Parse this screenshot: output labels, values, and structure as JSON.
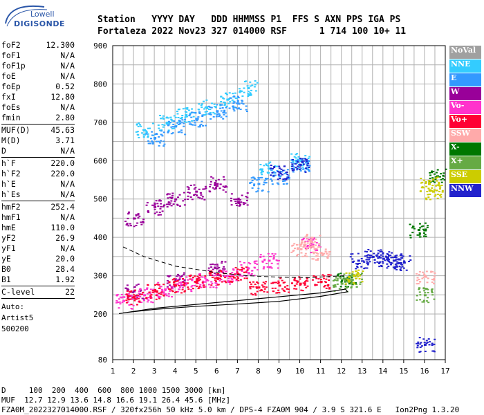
{
  "logo": {
    "line1": "Lowell",
    "line2": "DIGISONDE"
  },
  "header": {
    "line1": "Station   YYYY DAY   DDD HHMMSS P1  FFS S AXN PPS IGA PS",
    "line2": "Fortaleza 2022 Nov23 327 014000 RSF      1 714 100 10+ 11"
  },
  "params": {
    "group1": [
      {
        "k": "foF2",
        "v": "12.300"
      },
      {
        "k": "foF1",
        "v": "N/A"
      },
      {
        "k": "foF1p",
        "v": "N/A"
      },
      {
        "k": "foE",
        "v": "N/A"
      },
      {
        "k": "foEp",
        "v": "0.52"
      },
      {
        "k": "fxI",
        "v": "12.80"
      },
      {
        "k": "foEs",
        "v": "N/A"
      },
      {
        "k": "fmin",
        "v": "2.80"
      }
    ],
    "group2": [
      {
        "k": "MUF(D)",
        "v": "45.63"
      },
      {
        "k": "M(D)",
        "v": "3.71"
      },
      {
        "k": "D",
        "v": "N/A"
      }
    ],
    "group3": [
      {
        "k": "h`F",
        "v": "220.0"
      },
      {
        "k": "h`F2",
        "v": "220.0"
      },
      {
        "k": "h`E",
        "v": "N/A"
      },
      {
        "k": "h`Es",
        "v": "N/A"
      }
    ],
    "group4": [
      {
        "k": "hmF2",
        "v": "252.4"
      },
      {
        "k": "hmF1",
        "v": "N/A"
      },
      {
        "k": "hmE",
        "v": "110.0"
      },
      {
        "k": "yF2",
        "v": "26.9"
      },
      {
        "k": "yF1",
        "v": "N/A"
      },
      {
        "k": "yE",
        "v": "20.0"
      },
      {
        "k": "B0",
        "v": "28.4"
      },
      {
        "k": "B1",
        "v": "1.92"
      }
    ],
    "group5": [
      {
        "k": "C-level",
        "v": "22"
      }
    ],
    "auto": [
      "Auto:",
      "Artist5",
      "500200"
    ]
  },
  "footer": {
    "line1": "D     100  200  400  600  800 1000 1500 3000 [km]",
    "line2": "MUF  12.7 12.9 13.6 14.8 16.6 19.1 26.4 45.6 [MHz]",
    "line3": "FZA0M_2022327014000.RSF / 320fx256h 50 kHz 5.0 km / DPS-4 FZA0M 904 / 3.9 S 321.6 E   Ion2Png 1.3.20"
  },
  "legend": [
    {
      "label": "NoVal",
      "color": "#a0a0a0"
    },
    {
      "label": "NNE",
      "color": "#33ccff"
    },
    {
      "label": "E",
      "color": "#3399ff"
    },
    {
      "label": "W",
      "color": "#990099"
    },
    {
      "label": "Vo-",
      "color": "#ff33cc"
    },
    {
      "label": "Vo+",
      "color": "#ff0033"
    },
    {
      "label": "SSW",
      "color": "#ffaaaa"
    },
    {
      "label": "X-",
      "color": "#007700"
    },
    {
      "label": "X+",
      "color": "#66aa44"
    },
    {
      "label": "SSE",
      "color": "#cccc00"
    },
    {
      "label": "NNW",
      "color": "#2222cc"
    }
  ],
  "chart_data": {
    "type": "scatter",
    "title": "",
    "xlabel": "",
    "ylabel": "",
    "xlim": [
      1,
      17
    ],
    "ylim": [
      80,
      900
    ],
    "x_ticks": [
      1,
      2,
      3,
      4,
      5,
      6,
      7,
      8,
      9,
      10,
      11,
      12,
      13,
      14,
      15,
      16,
      17
    ],
    "y_ticks": [
      80,
      200,
      300,
      400,
      500,
      600,
      700,
      800,
      900
    ],
    "grid": true,
    "legend_position": "right",
    "series": [
      {
        "name": "NNE",
        "color": "#33ccff",
        "points": [
          [
            2.5,
            680
          ],
          [
            3.6,
            700
          ],
          [
            4.5,
            720
          ],
          [
            5.5,
            740
          ],
          [
            6.5,
            760
          ],
          [
            7.5,
            790
          ],
          [
            8.5,
            580
          ],
          [
            10,
            600
          ]
        ]
      },
      {
        "name": "E",
        "color": "#3399ff",
        "points": [
          [
            3,
            660
          ],
          [
            4,
            690
          ],
          [
            5,
            710
          ],
          [
            6,
            730
          ],
          [
            7,
            750
          ],
          [
            8,
            540
          ],
          [
            9,
            560
          ],
          [
            10,
            590
          ]
        ]
      },
      {
        "name": "W",
        "color": "#990099",
        "points": [
          [
            2,
            450
          ],
          [
            3,
            480
          ],
          [
            4,
            500
          ],
          [
            5,
            520
          ],
          [
            6,
            540
          ],
          [
            7,
            500
          ],
          [
            2,
            260
          ],
          [
            4,
            290
          ],
          [
            6,
            320
          ]
        ]
      },
      {
        "name": "Vo-",
        "color": "#ff33cc",
        "points": [
          [
            1.5,
            235
          ],
          [
            2.5,
            250
          ],
          [
            3.5,
            265
          ],
          [
            4.5,
            280
          ],
          [
            5.5,
            290
          ],
          [
            6.5,
            300
          ],
          [
            7.5,
            320
          ],
          [
            8.5,
            340
          ],
          [
            10.5,
            380
          ]
        ]
      },
      {
        "name": "Vo+",
        "color": "#ff0033",
        "points": [
          [
            2,
            245
          ],
          [
            3,
            260
          ],
          [
            4,
            275
          ],
          [
            5,
            285
          ],
          [
            6,
            295
          ],
          [
            7,
            305
          ],
          [
            8,
            270
          ],
          [
            9,
            275
          ],
          [
            10,
            280
          ],
          [
            11,
            285
          ]
        ]
      },
      {
        "name": "SSW",
        "color": "#ffaaaa",
        "points": [
          [
            10,
            370
          ],
          [
            10.5,
            390
          ],
          [
            11,
            360
          ],
          [
            16,
            300
          ]
        ]
      },
      {
        "name": "X-",
        "color": "#007700",
        "points": [
          [
            12.2,
            290
          ],
          [
            15.7,
            420
          ],
          [
            16.6,
            560
          ]
        ]
      },
      {
        "name": "X+",
        "color": "#66aa44",
        "points": [
          [
            12,
            280
          ],
          [
            12.5,
            290
          ],
          [
            16,
            250
          ]
        ]
      },
      {
        "name": "SSE",
        "color": "#cccc00",
        "points": [
          [
            12.6,
            300
          ],
          [
            16.2,
            540
          ],
          [
            16.4,
            520
          ]
        ]
      },
      {
        "name": "NNW",
        "color": "#2222cc",
        "points": [
          [
            12.8,
            340
          ],
          [
            13.5,
            350
          ],
          [
            14,
            345
          ],
          [
            14.5,
            340
          ],
          [
            15,
            335
          ],
          [
            10,
            590
          ],
          [
            9,
            570
          ],
          [
            16,
            120
          ]
        ]
      }
    ],
    "profile_curve": [
      [
        1.3,
        201
      ],
      [
        3,
        215
      ],
      [
        5,
        225
      ],
      [
        7,
        235
      ],
      [
        9,
        245
      ],
      [
        11,
        255
      ],
      [
        12.2,
        265
      ],
      [
        12.3,
        258
      ],
      [
        11,
        246
      ],
      [
        9,
        233
      ],
      [
        7,
        226
      ],
      [
        5,
        220
      ],
      [
        3,
        212
      ],
      [
        1.5,
        203
      ]
    ],
    "dashed_curve": [
      [
        1.5,
        375
      ],
      [
        2.5,
        350
      ],
      [
        4,
        325
      ],
      [
        6,
        308
      ],
      [
        7.5,
        300
      ],
      [
        9,
        296
      ],
      [
        10.5,
        295
      ],
      [
        12.2,
        300
      ]
    ]
  }
}
